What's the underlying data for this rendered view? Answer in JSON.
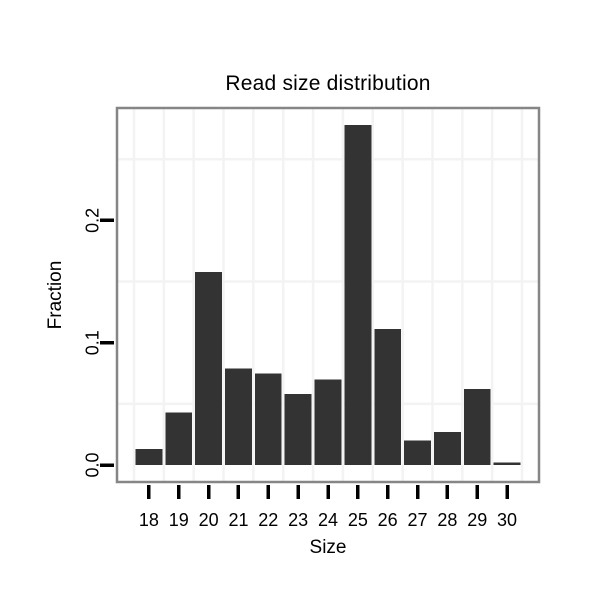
{
  "chart_data": {
    "type": "bar",
    "title": "Read size distribution",
    "xlabel": "Size",
    "ylabel": "Fraction",
    "categories": [
      18,
      19,
      20,
      21,
      22,
      23,
      24,
      25,
      26,
      27,
      28,
      29,
      30
    ],
    "values": [
      0.013,
      0.043,
      0.158,
      0.079,
      0.075,
      0.058,
      0.07,
      0.278,
      0.111,
      0.02,
      0.027,
      0.062,
      0.002
    ],
    "x_tick_labels": [
      "18",
      "19",
      "20",
      "21",
      "22",
      "23",
      "24",
      "25",
      "26",
      "27",
      "28",
      "29",
      "30"
    ],
    "y_ticks": [
      {
        "value": 0.0,
        "label": "0.0"
      },
      {
        "value": 0.1,
        "label": "0.1"
      },
      {
        "value": 0.2,
        "label": "0.2"
      }
    ],
    "xlim": [
      16.93,
      31.07
    ],
    "ylim": [
      -0.0139,
      0.2919
    ],
    "minor_grid_x": [
      17.5,
      18.5,
      19.5,
      20.5,
      21.5,
      22.5,
      23.5,
      24.5,
      25.5,
      26.5,
      27.5,
      28.5,
      29.5,
      30.5
    ],
    "minor_grid_y": [
      0.05,
      0.15,
      0.25
    ],
    "bar_width_units": 0.9,
    "grid": true,
    "legend": false,
    "colors": {
      "bar_fill": "#333333",
      "panel_border": "#868686",
      "panel_background": "#ffffff",
      "minor_grid": "#f3f3f3",
      "tick": "#000000",
      "text": "#000000"
    }
  }
}
